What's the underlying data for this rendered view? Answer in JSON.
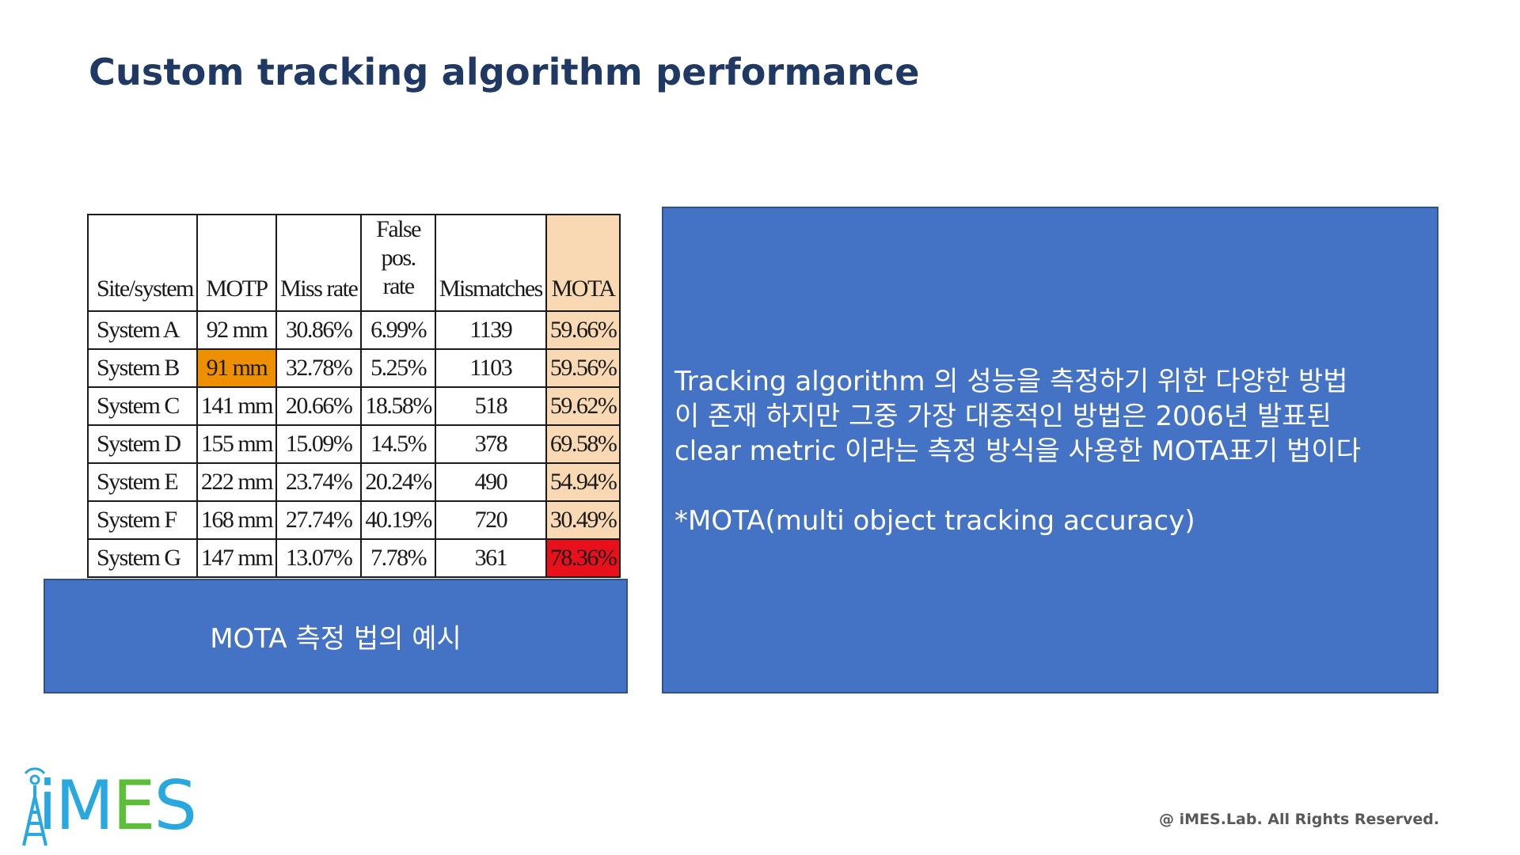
{
  "slide": {
    "title": "Custom tracking algorithm performance",
    "footer": "@ iMES.Lab. All Rights Reserved.",
    "logo_text": "iMES"
  },
  "table": {
    "headers": [
      "Site/system",
      "MOTP",
      "Miss rate",
      "False pos. rate",
      "Mismatches",
      "MOTA"
    ],
    "rows": [
      [
        "System A",
        "92 mm",
        "30.86%",
        "6.99%",
        "1139",
        "59.66%"
      ],
      [
        "System B",
        "91 mm",
        "32.78%",
        "5.25%",
        "1103",
        "59.56%"
      ],
      [
        "System C",
        "141 mm",
        "20.66%",
        "18.58%",
        "518",
        "59.62%"
      ],
      [
        "System D",
        "155 mm",
        "15.09%",
        "14.5%",
        "378",
        "69.58%"
      ],
      [
        "System E",
        "222 mm",
        "23.74%",
        "20.24%",
        "490",
        "54.94%"
      ],
      [
        "System F",
        "168 mm",
        "27.74%",
        "40.19%",
        "720",
        "30.49%"
      ],
      [
        "System G",
        "147 mm",
        "13.07%",
        "7.78%",
        "361",
        "78.36%"
      ]
    ],
    "colors": {
      "mota_column": "#f9d9b3",
      "highlight_orange": "#ee8f00",
      "highlight_red": "#e8101a"
    }
  },
  "caption": "MOTA 측정 법의 예시",
  "description": {
    "lines": [
      "Tracking algorithm 의 성능을 측정하기 위한 다양한 방법",
      "이 존재 하지만 그중 가장 대중적인 방법은 2006년 발표된",
      "clear metric 이라는 측정 방식을 사용한 MOTA표기 법이다"
    ],
    "note": "*MOTA(multi object tracking accuracy)",
    "box_color": "#4472c4"
  }
}
